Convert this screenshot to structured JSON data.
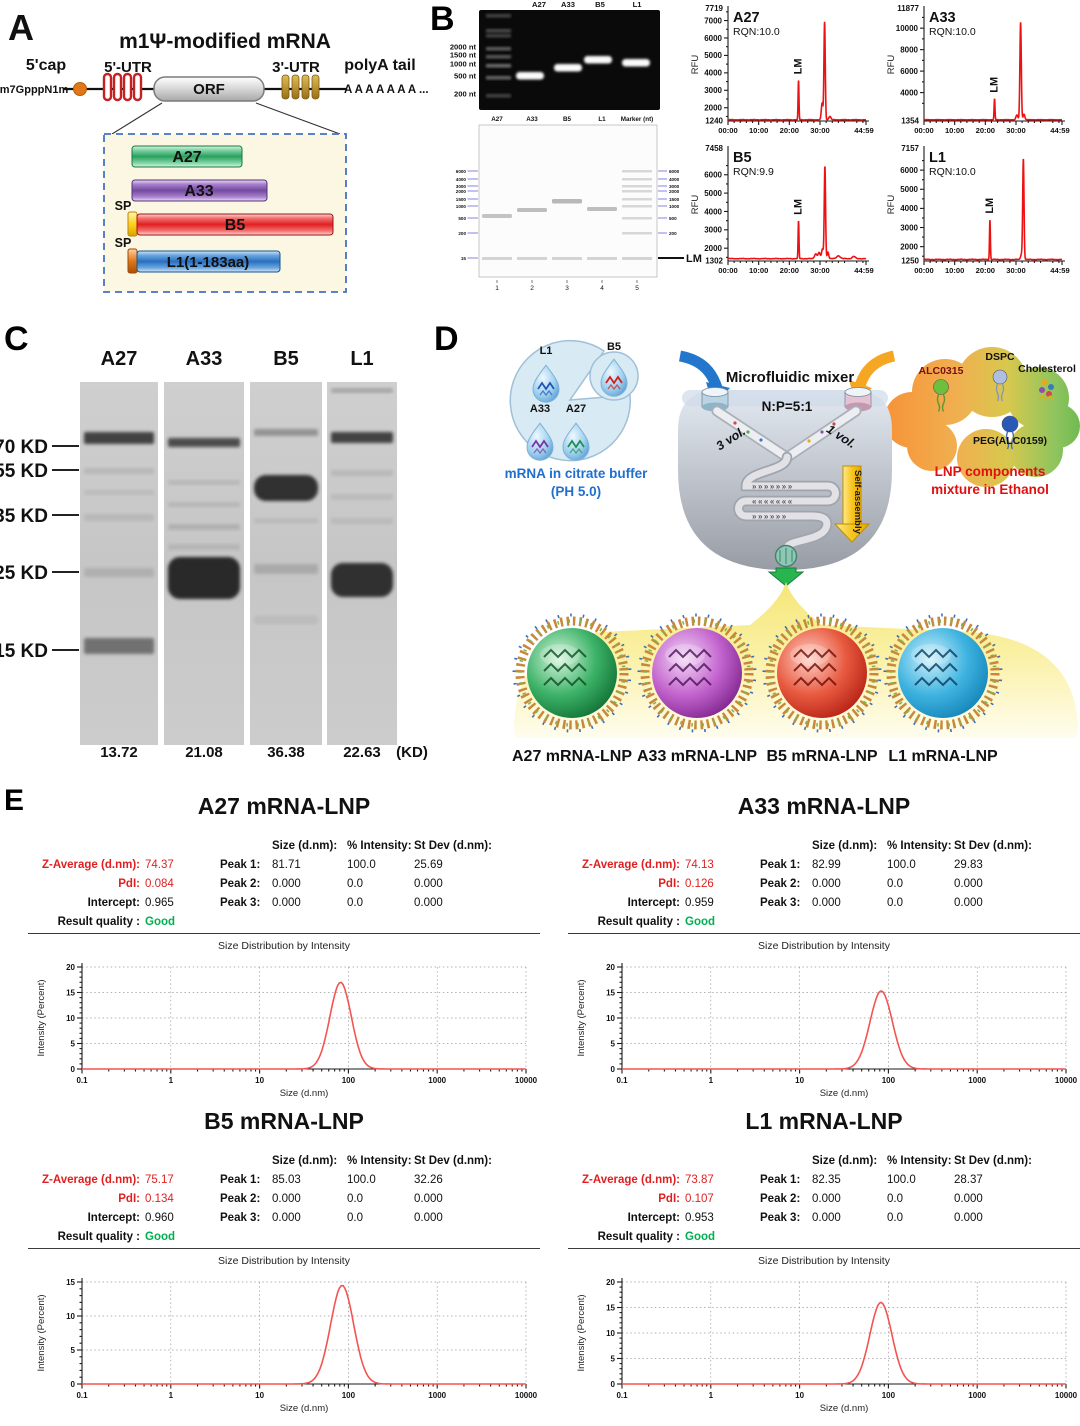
{
  "colors": {
    "epg_line": "#ee1111",
    "dls_line": "#f25551",
    "stat_red": "#e02020",
    "quality_green": "#00b050",
    "caption_blue": "#1f6fd0",
    "caption_red": "#e01010",
    "virtual_gel_marker_blue": "#5252d6",
    "construct_green": "#28a05c",
    "construct_purple": "#714aa0",
    "construct_red": "#e02020",
    "construct_blue": "#2a6fc0",
    "sp_yellow": "#eab500",
    "sp_orange": "#d85510",
    "lnp_core_green": "#1e8f45",
    "lnp_core_purple": "#a93cb4",
    "lnp_core_red": "#d32517",
    "lnp_core_cyan": "#1f9ad4"
  },
  "panelA": {
    "label": "A",
    "title": "m1Ψ-modified mRNA",
    "cap_label": "5'cap",
    "cap_chem": "m7GpppN1m",
    "utr5": "5'-UTR",
    "orf": "ORF",
    "utr3": "3'-UTR",
    "polya_label": "polyA tail",
    "polya_seq": "A A A A A A A ...",
    "constructs": [
      {
        "name": "A27"
      },
      {
        "name": "A33"
      },
      {
        "name": "B5",
        "sp": "SP"
      },
      {
        "name": "L1(1-183aa)",
        "sp": "SP"
      }
    ]
  },
  "panelB": {
    "label": "B",
    "gel": {
      "lanes": [
        "A27",
        "A33",
        "B5",
        "L1"
      ],
      "markers": [
        "2000 nt",
        "1500 nt",
        "1000 nt",
        "500 nt",
        "200 nt"
      ]
    },
    "virtual_gel": {
      "lanes": [
        "A27",
        "A33",
        "B5",
        "L1",
        "Marker (nt)"
      ],
      "lane_numbers": [
        "1",
        "2",
        "3",
        "4",
        "5"
      ],
      "marker_values": [
        "6000",
        "4000",
        "3000",
        "2000",
        "1500",
        "1000",
        "500",
        "200"
      ],
      "lm_value": "15",
      "lm_label": "LM"
    }
  },
  "panelC": {
    "label": "C",
    "lanes": [
      "A27",
      "A33",
      "B5",
      "L1"
    ],
    "markers": [
      "70 KD",
      "55 KD",
      "35 KD",
      "25 KD",
      "15 KD"
    ],
    "weights": [
      "13.72",
      "21.08",
      "36.38",
      "22.63"
    ],
    "unit": "(KD)"
  },
  "panelD": {
    "label": "D",
    "mixer_title": "Microfluidic mixer",
    "np_ratio": "N:P=5:1",
    "vol_left": "3 vol.",
    "vol_right": "1 vol.",
    "self_assembly": "Self-assembly",
    "droplets": [
      "L1",
      "B5",
      "A33",
      "A27"
    ],
    "left_caption_line1": "mRNA in citrate buffer",
    "left_caption_line2": "(PH 5.0)",
    "components": [
      "ALC0315",
      "DSPC",
      "Cholesterol",
      "PEG(ALC0159)"
    ],
    "right_caption_line1": "LNP components",
    "right_caption_line2": "mixture in Ethanol",
    "lnp_labels": [
      "A27 mRNA-LNP",
      "A33 mRNA-LNP",
      "B5 mRNA-LNP",
      "L1 mRNA-LNP"
    ]
  },
  "panelE": {
    "label": "E",
    "stat_labels": {
      "z": "Z-Average (d.nm):",
      "pdi": "PdI:",
      "intercept": "Intercept:",
      "quality": "Result quality :"
    },
    "col_headers": [
      "Size (d.nm):",
      "% Intensity:",
      "St Dev (d.nm):"
    ],
    "peak_labels": [
      "Peak 1:",
      "Peak 2:",
      "Peak 3:"
    ],
    "chart_title": "Size Distribution by Intensity",
    "items": [
      {
        "title": "A27 mRNA-LNP",
        "z": "74.37",
        "pdi": "0.084",
        "intercept": "0.965",
        "quality": "Good",
        "peaks": [
          [
            "81.71",
            "100.0",
            "25.69"
          ],
          [
            "0.000",
            "0.0",
            "0.000"
          ],
          [
            "0.000",
            "0.0",
            "0.000"
          ]
        ]
      },
      {
        "title": "A33 mRNA-LNP",
        "z": "74.13",
        "pdi": "0.126",
        "intercept": "0.959",
        "quality": "Good",
        "peaks": [
          [
            "82.99",
            "100.0",
            "29.83"
          ],
          [
            "0.000",
            "0.0",
            "0.000"
          ],
          [
            "0.000",
            "0.0",
            "0.000"
          ]
        ]
      },
      {
        "title": "B5 mRNA-LNP",
        "z": "75.17",
        "pdi": "0.134",
        "intercept": "0.960",
        "quality": "Good",
        "peaks": [
          [
            "85.03",
            "100.0",
            "32.26"
          ],
          [
            "0.000",
            "0.0",
            "0.000"
          ],
          [
            "0.000",
            "0.0",
            "0.000"
          ]
        ]
      },
      {
        "title": "L1 mRNA-LNP",
        "z": "73.87",
        "pdi": "0.107",
        "intercept": "0.953",
        "quality": "Good",
        "peaks": [
          [
            "82.35",
            "100.0",
            "28.37"
          ],
          [
            "0.000",
            "0.0",
            "0.000"
          ],
          [
            "0.000",
            "0.0",
            "0.000"
          ]
        ]
      }
    ]
  },
  "chart_data": {
    "electropherograms": [
      {
        "type": "line",
        "name": "A27",
        "rqn": "RQN:10.0",
        "ylabel": "RFU",
        "ymin": 1240,
        "ymax": 7719,
        "yticks": [
          2000,
          3000,
          4000,
          5000,
          6000,
          7000
        ],
        "xtick_labels": [
          "00:00",
          "10:00",
          "20:00",
          "30:00",
          "44:59"
        ],
        "tmax": 45,
        "lm_label": "LM",
        "lm_time": 23,
        "baseline": 1310,
        "peaks": [
          [
            23,
            2260,
            0.2
          ],
          [
            30.7,
            950,
            0.38
          ],
          [
            31.5,
            5610,
            0.3
          ],
          [
            33.2,
            190,
            0.5
          ]
        ],
        "color": "#ee1111"
      },
      {
        "type": "line",
        "name": "A33",
        "rqn": "RQN:10.0",
        "ylabel": "RFU",
        "ymin": 1354,
        "ymax": 11877,
        "yticks": [
          4000,
          6000,
          8000,
          10000
        ],
        "xtick_labels": [
          "00:00",
          "10:00",
          "20:00",
          "30:00",
          "44:59"
        ],
        "tmax": 45,
        "lm_label": "LM",
        "lm_time": 23,
        "baseline": 1470,
        "peaks": [
          [
            23,
            1960,
            0.2
          ],
          [
            30.3,
            430,
            0.45
          ],
          [
            31.5,
            9080,
            0.32
          ],
          [
            32.6,
            520,
            0.4
          ]
        ],
        "color": "#ee1111"
      },
      {
        "type": "line",
        "name": "B5",
        "rqn": "RQN:9.9",
        "ylabel": "RFU",
        "ymin": 1302,
        "ymax": 7458,
        "yticks": [
          2000,
          3000,
          4000,
          5000,
          6000
        ],
        "xtick_labels": [
          "00:00",
          "10:00",
          "20:00",
          "30:00",
          "44:59"
        ],
        "tmax": 45,
        "lm_label": "LM",
        "lm_time": 23,
        "baseline": 1430,
        "peaks": [
          [
            23,
            2060,
            0.2
          ],
          [
            28.6,
            260,
            0.55
          ],
          [
            29.7,
            330,
            0.5
          ],
          [
            30.8,
            520,
            0.4
          ],
          [
            31.6,
            5040,
            0.3
          ],
          [
            32.6,
            360,
            0.35
          ],
          [
            36,
            160,
            0.8
          ],
          [
            41,
            120,
            0.7
          ]
        ],
        "color": "#ee1111"
      },
      {
        "type": "line",
        "name": "L1",
        "rqn": "RQN:10.0",
        "ylabel": "RFU",
        "ymin": 1250,
        "ymax": 7157,
        "yticks": [
          2000,
          3000,
          4000,
          5000,
          6000
        ],
        "xtick_labels": [
          "00:00",
          "10:00",
          "20:00",
          "30:00",
          "44:59"
        ],
        "tmax": 45,
        "lm_label": "LM",
        "lm_time": 21.5,
        "baseline": 1330,
        "peaks": [
          [
            21.5,
            2080,
            0.2
          ],
          [
            31.8,
            280,
            0.4
          ],
          [
            32.4,
            5230,
            0.3
          ]
        ],
        "color": "#ee1111"
      }
    ],
    "dls_plots": [
      {
        "type": "line",
        "title": "Size Distribution by Intensity",
        "xlabel": "Size (d.nm)",
        "ylabel": "Intensity (Percent)",
        "ymax": 20,
        "yticks": [
          0,
          5,
          10,
          15,
          20
        ],
        "xtick_labels": [
          "0.1",
          "1",
          "10",
          "100",
          "1000",
          "10000"
        ],
        "xlim": [
          0.1,
          10000
        ],
        "peak_center_dnm": 81.71,
        "peak_height_pct": 17.0,
        "sigma_log10": 0.17,
        "color": "#f25551"
      },
      {
        "type": "line",
        "title": "Size Distribution by Intensity",
        "xlabel": "Size (d.nm)",
        "ylabel": "Intensity (Percent)",
        "ymax": 20,
        "yticks": [
          0,
          5,
          10,
          15,
          20
        ],
        "xtick_labels": [
          "0.1",
          "1",
          "10",
          "100",
          "1000",
          "10000"
        ],
        "xlim": [
          0.1,
          10000
        ],
        "peak_center_dnm": 82.99,
        "peak_height_pct": 15.3,
        "sigma_log10": 0.178,
        "color": "#f25551"
      },
      {
        "type": "line",
        "title": "Size Distribution by Intensity",
        "xlabel": "Size (d.nm)",
        "ylabel": "Intensity (Percent)",
        "ymax": 15,
        "yticks": [
          0,
          5,
          10,
          15
        ],
        "xtick_labels": [
          "0.1",
          "1",
          "10",
          "100",
          "1000",
          "10000"
        ],
        "xlim": [
          0.1,
          10000
        ],
        "peak_center_dnm": 85.03,
        "peak_height_pct": 14.5,
        "sigma_log10": 0.183,
        "color": "#f25551"
      },
      {
        "type": "line",
        "title": "Size Distribution by Intensity",
        "xlabel": "Size (d.nm)",
        "ylabel": "Intensity (Percent)",
        "ymax": 20,
        "yticks": [
          0,
          5,
          10,
          15,
          20
        ],
        "xtick_labels": [
          "0.1",
          "1",
          "10",
          "100",
          "1000",
          "10000"
        ],
        "xlim": [
          0.1,
          10000
        ],
        "peak_center_dnm": 82.35,
        "peak_height_pct": 16.0,
        "sigma_log10": 0.175,
        "color": "#f25551"
      }
    ]
  }
}
